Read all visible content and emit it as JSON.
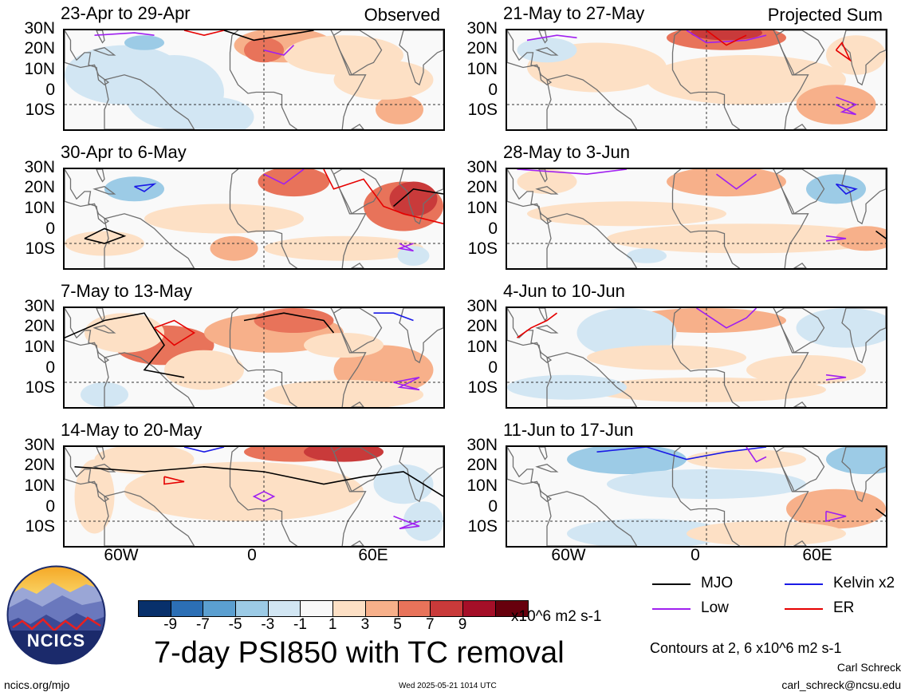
{
  "panels_left": [
    {
      "title": "23-Apr to 29-Apr",
      "label": "Observed"
    },
    {
      "title": "30-Apr to 6-May",
      "label": ""
    },
    {
      "title": "7-May to 13-May",
      "label": ""
    },
    {
      "title": "14-May to 20-May",
      "label": ""
    }
  ],
  "panels_right": [
    {
      "title": "21-May to 27-May",
      "label": "Projected Sum"
    },
    {
      "title": "28-May to 3-Jun",
      "label": ""
    },
    {
      "title": "4-Jun to 10-Jun",
      "label": ""
    },
    {
      "title": "11-Jun to 17-Jun",
      "label": ""
    }
  ],
  "lat_labels": [
    "30N",
    "20N",
    "10N",
    "0",
    "10S"
  ],
  "lon_labels": [
    "60W",
    "0",
    "60E"
  ],
  "colorbar": {
    "colors": [
      "#08306b",
      "#2c6fb5",
      "#5b9fd0",
      "#9ccbe6",
      "#d2e6f3",
      "#f8f8f8",
      "#fde0c5",
      "#f7b08a",
      "#e8735a",
      "#c93a3a",
      "#a50f28",
      "#67000d"
    ],
    "ticks": [
      "-9",
      "-7",
      "-5",
      "-3",
      "-1",
      "1",
      "3",
      "5",
      "7",
      "9"
    ],
    "units": "x10^6 m2 s-1"
  },
  "legend": [
    {
      "label": "MJO",
      "color": "#000000"
    },
    {
      "label": "Kelvin x2",
      "color": "#1a1ae6"
    },
    {
      "label": "Low",
      "color": "#a020f0"
    },
    {
      "label": "ER",
      "color": "#e60000"
    }
  ],
  "contour_note": "Contours at 2, 6 x10^6 m2 s-1",
  "main_title": "7-day PSI850 with TC removal",
  "logo_text": "NCICS",
  "url": "ncics.org/mjo",
  "timestamp": "Wed 2025-05-21 1014 UTC",
  "author": "Carl Schreck",
  "email": "carl_schreck@ncsu.edu"
}
